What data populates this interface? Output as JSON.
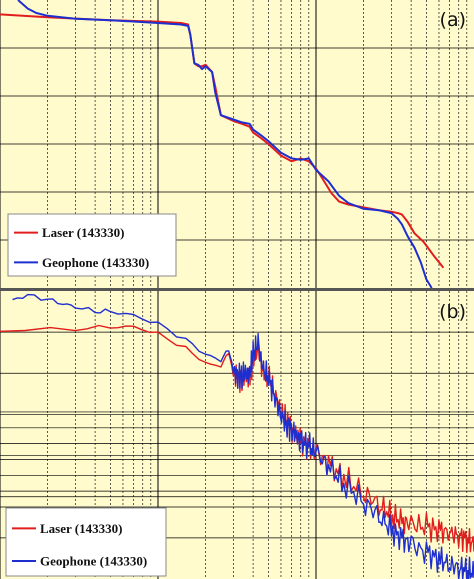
{
  "colors": {
    "background": "#FFFBCC",
    "laser": "#E11D1D",
    "geophone": "#1E2FD0",
    "grid_major": "#000000",
    "grid_minor": "#333333",
    "separator": "#555555"
  },
  "chart_data": [
    {
      "type": "line",
      "panel_label": "(a)",
      "x_scale": "log",
      "y_scale": "linear",
      "xlim": [
        1,
        1000
      ],
      "ylim": [
        0,
        100
      ],
      "grid": true,
      "legend_placement": "bottom-left",
      "series": [
        {
          "name": "Laser (143330)",
          "color": "#E11D1D",
          "x": [
            1,
            2,
            5,
            10,
            14,
            15.5,
            16,
            17,
            18,
            19,
            20,
            22,
            23,
            25,
            30,
            34,
            38,
            40,
            45,
            50,
            60,
            70,
            80,
            90,
            100,
            110,
            125,
            140,
            160,
            200,
            250,
            300,
            330,
            350,
            380,
            420,
            480,
            560,
            640
          ],
          "y": [
            95,
            94,
            93,
            92.5,
            92,
            91.5,
            88,
            78,
            77,
            77,
            77.5,
            75,
            70,
            60,
            58,
            57,
            56,
            54,
            52,
            50,
            46,
            44,
            45,
            44,
            41.5,
            38,
            33,
            30,
            29,
            28,
            27,
            26.5,
            26,
            25.5,
            23,
            19,
            16,
            11,
            7
          ]
        },
        {
          "name": "Geophone (143330)",
          "color": "#1E2FD0",
          "x": [
            1.3,
            1.5,
            1.7,
            2,
            3,
            5,
            10,
            14,
            15.5,
            16,
            17,
            18,
            19,
            20,
            22,
            23,
            25,
            30,
            34,
            38,
            40,
            45,
            50,
            60,
            70,
            80,
            90,
            100,
            120,
            140,
            160,
            200,
            250,
            300,
            330,
            350,
            380,
            420,
            460,
            500,
            540
          ],
          "y": [
            100,
            97,
            95.5,
            94.5,
            93.5,
            93,
            92,
            91.5,
            91,
            88,
            78,
            77.5,
            76,
            77,
            75,
            68,
            60,
            58.5,
            57.5,
            57,
            55,
            53,
            51,
            47,
            45,
            44.5,
            45,
            41,
            37,
            32,
            29.5,
            27.5,
            27,
            26,
            24,
            22,
            18,
            14,
            9,
            3,
            0
          ]
        }
      ]
    },
    {
      "type": "line",
      "panel_label": "(b)",
      "x_scale": "log",
      "y_scale": "linear",
      "xlim": [
        1,
        1000
      ],
      "ylim": [
        0,
        100
      ],
      "grid": true,
      "legend_placement": "bottom-left",
      "series": [
        {
          "name": "Laser (143330)",
          "color": "#E11D1D",
          "x": [
            1,
            3,
            5,
            7,
            10,
            15,
            20,
            25,
            28,
            30,
            32,
            34,
            36,
            38,
            40,
            43,
            46,
            50,
            55,
            60,
            65,
            70,
            75,
            80,
            90,
            100,
            120,
            150,
            200,
            250,
            300,
            350,
            400,
            500,
            600,
            700,
            800,
            900,
            1000
          ],
          "y": [
            86,
            87,
            87.5,
            87.5,
            85,
            80,
            75,
            74,
            79,
            71,
            70,
            69.5,
            71,
            70.5,
            76,
            80,
            72,
            70,
            64,
            58,
            55,
            52,
            50,
            48,
            46,
            44,
            40,
            35,
            30,
            26,
            22,
            20,
            19,
            18,
            17,
            16,
            15,
            14,
            12
          ]
        },
        {
          "name": "Geophone (143330)",
          "color": "#1E2FD0",
          "x": [
            1.2,
            1.5,
            2,
            2.5,
            3,
            4,
            5,
            7,
            10,
            15,
            20,
            25,
            28,
            30,
            32,
            34,
            36,
            38,
            40,
            43,
            46,
            50,
            55,
            60,
            65,
            70,
            75,
            80,
            90,
            100,
            120,
            150,
            200,
            250,
            300,
            350,
            400,
            500,
            600,
            700,
            800,
            900,
            1000
          ],
          "y": [
            97,
            98.5,
            97,
            95.5,
            94.5,
            93,
            93,
            91.5,
            88.5,
            83,
            78,
            76,
            80,
            72,
            71,
            70.5,
            71.5,
            71,
            78,
            82,
            73,
            70,
            63,
            57,
            54,
            52,
            50,
            48,
            46,
            44,
            39,
            33,
            27,
            22,
            17,
            14,
            12,
            9,
            7,
            5,
            4,
            3,
            2
          ]
        }
      ]
    }
  ]
}
